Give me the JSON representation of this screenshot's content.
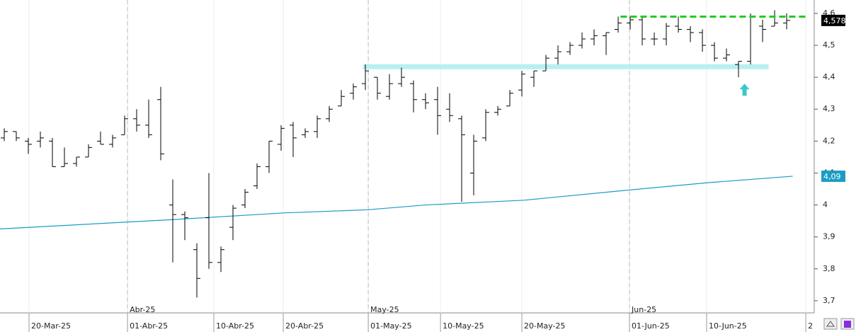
{
  "chart_data": {
    "type": "ohlc",
    "x": [
      0,
      1,
      2,
      3,
      4,
      5,
      6,
      7,
      8,
      9,
      10,
      11,
      12,
      13,
      14,
      15,
      16,
      17,
      18,
      19,
      20,
      21,
      22,
      23,
      24,
      25,
      26,
      27,
      28,
      29,
      30,
      31,
      32,
      33,
      34,
      35,
      36,
      37,
      38,
      39,
      40,
      41,
      42,
      43,
      44,
      45,
      46,
      47,
      48,
      49,
      50,
      51,
      52,
      53,
      54,
      55,
      56,
      57,
      58,
      59,
      60,
      61,
      62,
      63,
      64,
      65
    ],
    "open": [
      4.21,
      4.23,
      4.2,
      4.2,
      4.2,
      4.12,
      4.13,
      4.15,
      4.2,
      4.19,
      4.22,
      4.27,
      4.25,
      4.33,
      4.0,
      3.97,
      3.86,
      3.96,
      3.82,
      3.93,
      4.0,
      4.06,
      4.12,
      4.19,
      4.25,
      4.22,
      4.23,
      4.27,
      4.31,
      4.35,
      4.38,
      4.4,
      4.34,
      4.38,
      4.38,
      4.33,
      4.33,
      4.3,
      4.27,
      4.1,
      4.21,
      4.29,
      4.31,
      4.36,
      4.4,
      4.42,
      4.46,
      4.48,
      4.5,
      4.52,
      4.53,
      4.55,
      4.57,
      4.58,
      4.52,
      4.52,
      4.56,
      4.55,
      4.54,
      4.5,
      4.46,
      4.44,
      4.45,
      4.56,
      4.56,
      4.57
    ],
    "high": [
      4.24,
      4.23,
      4.21,
      4.23,
      4.21,
      4.18,
      4.15,
      4.19,
      4.23,
      4.22,
      4.28,
      4.3,
      4.33,
      4.37,
      4.08,
      3.98,
      3.88,
      4.1,
      3.87,
      4.0,
      4.05,
      4.13,
      4.2,
      4.25,
      4.26,
      4.24,
      4.28,
      4.31,
      4.36,
      4.38,
      4.44,
      4.4,
      4.41,
      4.43,
      4.39,
      4.35,
      4.37,
      4.35,
      4.28,
      4.22,
      4.3,
      4.31,
      4.36,
      4.42,
      4.42,
      4.47,
      4.5,
      4.51,
      4.54,
      4.55,
      4.54,
      4.59,
      4.59,
      4.59,
      4.54,
      4.57,
      4.59,
      4.56,
      4.55,
      4.51,
      4.49,
      4.45,
      4.6,
      4.58,
      4.61,
      4.6
    ],
    "low": [
      4.2,
      4.2,
      4.16,
      4.18,
      4.12,
      4.12,
      4.12,
      4.15,
      4.19,
      4.18,
      4.22,
      4.23,
      4.21,
      4.14,
      3.82,
      3.89,
      3.71,
      3.8,
      3.79,
      3.89,
      3.99,
      4.05,
      4.1,
      4.17,
      4.15,
      4.21,
      4.21,
      4.26,
      4.31,
      4.33,
      4.36,
      4.33,
      4.33,
      4.37,
      4.29,
      4.3,
      4.22,
      4.26,
      4.01,
      4.03,
      4.2,
      4.28,
      4.31,
      4.34,
      4.37,
      4.42,
      4.44,
      4.47,
      4.49,
      4.5,
      4.47,
      4.54,
      4.55,
      4.5,
      4.5,
      4.5,
      4.54,
      4.51,
      4.48,
      4.45,
      4.45,
      4.4,
      4.44,
      4.51,
      4.56,
      4.55
    ],
    "close": [
      4.23,
      4.21,
      4.19,
      4.21,
      4.12,
      4.13,
      4.15,
      4.18,
      4.19,
      4.21,
      4.27,
      4.25,
      4.22,
      4.16,
      3.97,
      3.96,
      3.77,
      3.82,
      3.86,
      3.99,
      4.04,
      4.12,
      4.2,
      4.24,
      4.21,
      4.23,
      4.27,
      4.3,
      4.34,
      4.37,
      4.42,
      4.35,
      4.38,
      4.4,
      4.33,
      4.32,
      4.28,
      4.28,
      4.22,
      4.2,
      4.29,
      4.3,
      4.35,
      4.41,
      4.42,
      4.46,
      4.48,
      4.5,
      4.52,
      4.53,
      4.54,
      4.57,
      4.58,
      4.52,
      4.52,
      4.56,
      4.55,
      4.54,
      4.5,
      4.46,
      4.47,
      4.45,
      4.59,
      4.55,
      4.57,
      4.578
    ],
    "moving_average": {
      "color": "#1a9dc4",
      "x": [
        -0.35,
        14.4,
        23.2,
        30.2,
        35,
        43.2,
        51.4,
        58.5,
        65.5
      ],
      "values": [
        3.925,
        3.955,
        3.975,
        3.985,
        4.0,
        4.015,
        4.045,
        4.07,
        4.09
      ]
    },
    "resistance": {
      "color": "#22cc22",
      "value": 4.59,
      "x": [
        51.2,
        66.7
      ]
    },
    "support_band": {
      "color": "#b8f0f0",
      "value": 4.433,
      "x": [
        29.8,
        63.5
      ]
    },
    "arrow": {
      "color": "#3cc8c8",
      "x": 61.5,
      "value": 4.36
    },
    "price_tags": [
      {
        "value": 4.578,
        "label": "4,578",
        "color": "#000000"
      },
      {
        "value": 4.09,
        "label": "4,09",
        "color": "#1a9dc4"
      }
    ],
    "xlim": [
      -0.353,
      67.29
    ],
    "ylim": [
      3.662,
      4.642
    ],
    "yticks": [
      {
        "value": 3.7,
        "label": "3,7"
      },
      {
        "value": 3.8,
        "label": "3,8"
      },
      {
        "value": 3.9,
        "label": "3,9"
      },
      4,
      {
        "value": 4.1,
        "label": "4,1"
      },
      {
        "value": 4.2,
        "label": "4,2"
      },
      {
        "value": 4.3,
        "label": "4,3"
      },
      {
        "value": 4.4,
        "label": "4,4"
      },
      {
        "value": 4.5,
        "label": "4,5"
      },
      {
        "value": 4.6,
        "label": "4,6"
      }
    ],
    "xticks": [
      {
        "value": 2.06,
        "label": "20-Mar-25"
      },
      {
        "value": 10.24,
        "label": "01-Abr-25"
      },
      {
        "value": 17.41,
        "label": "10-Abr-25"
      },
      {
        "value": 23.18,
        "label": "20-Abr-25"
      },
      {
        "value": 30.24,
        "label": "01-May-25"
      },
      {
        "value": 36.24,
        "label": "10-May-25"
      },
      {
        "value": 43.0,
        "label": "20-May-25"
      },
      {
        "value": 51.94,
        "label": "01-Jun-25"
      },
      {
        "value": 58.35,
        "label": "10-Jun-25"
      },
      {
        "value": 66.59,
        "label": "2"
      }
    ],
    "month_ticks": [
      {
        "value": 10.24,
        "label": "Abr-25"
      },
      {
        "value": 30.24,
        "label": "May-25"
      },
      {
        "value": 51.94,
        "label": "Jun-25"
      }
    ],
    "bar_color": "#000000"
  }
}
